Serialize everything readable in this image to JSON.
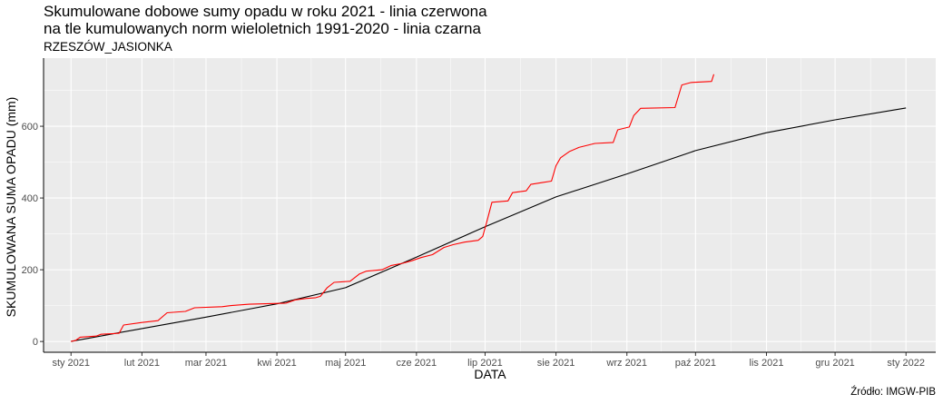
{
  "header": {
    "title_line1": "Skumulowane dobowe sumy opadu w roku 2021 - linia czerwona",
    "title_line2": "na tle kumulowanych norm wieloletnich 1991-2020 - linia czarna",
    "station": "RZESZÓW_JASIONKA"
  },
  "footer": {
    "source": "Źródło: IMGW-PIB"
  },
  "colors": {
    "actual": "#ff0000",
    "norm": "#000000",
    "panel": "#ebebeb",
    "grid": "#ffffff"
  },
  "chart_data": {
    "type": "line",
    "xlabel": "DATA",
    "ylabel": "SKUMULOWANA SUMA OPADU (mm)",
    "xlim": [
      "2020-12-20",
      "2022-01-14"
    ],
    "ylim": [
      -30,
      790
    ],
    "x_ticks": [
      {
        "date": "2021-01-01",
        "label": "sty 2021"
      },
      {
        "date": "2021-02-01",
        "label": "lut 2021"
      },
      {
        "date": "2021-03-01",
        "label": "mar 2021"
      },
      {
        "date": "2021-04-01",
        "label": "kwi 2021"
      },
      {
        "date": "2021-05-01",
        "label": "maj 2021"
      },
      {
        "date": "2021-06-01",
        "label": "cze 2021"
      },
      {
        "date": "2021-07-01",
        "label": "lip 2021"
      },
      {
        "date": "2021-08-01",
        "label": "sie 2021"
      },
      {
        "date": "2021-09-01",
        "label": "wrz 2021"
      },
      {
        "date": "2021-10-01",
        "label": "paź 2021"
      },
      {
        "date": "2021-11-01",
        "label": "lis 2021"
      },
      {
        "date": "2021-12-01",
        "label": "gru 2021"
      },
      {
        "date": "2022-01-01",
        "label": "sty 2022"
      }
    ],
    "y_ticks": [
      0,
      200,
      400,
      600
    ],
    "grid": true,
    "series": [
      {
        "color": "#000000",
        "points": [
          {
            "x": "2021-01-01",
            "y": 0
          },
          {
            "x": "2021-02-01",
            "y": 36
          },
          {
            "x": "2021-03-01",
            "y": 68
          },
          {
            "x": "2021-04-01",
            "y": 105
          },
          {
            "x": "2021-05-01",
            "y": 150
          },
          {
            "x": "2021-06-01",
            "y": 235
          },
          {
            "x": "2021-07-01",
            "y": 320
          },
          {
            "x": "2021-08-01",
            "y": 403
          },
          {
            "x": "2021-09-01",
            "y": 467
          },
          {
            "x": "2021-10-01",
            "y": 532
          },
          {
            "x": "2021-11-01",
            "y": 582
          },
          {
            "x": "2021-12-01",
            "y": 618
          },
          {
            "x": "2022-01-01",
            "y": 651
          }
        ]
      },
      {
        "color": "#ff0000",
        "points": [
          {
            "x": "2021-01-01",
            "y": 0
          },
          {
            "x": "2021-01-03",
            "y": 3
          },
          {
            "x": "2021-01-05",
            "y": 12
          },
          {
            "x": "2021-01-12",
            "y": 15
          },
          {
            "x": "2021-01-14",
            "y": 20
          },
          {
            "x": "2021-01-22",
            "y": 23
          },
          {
            "x": "2021-01-24",
            "y": 46
          },
          {
            "x": "2021-02-01",
            "y": 53
          },
          {
            "x": "2021-02-08",
            "y": 58
          },
          {
            "x": "2021-02-12",
            "y": 80
          },
          {
            "x": "2021-02-20",
            "y": 84
          },
          {
            "x": "2021-02-24",
            "y": 94
          },
          {
            "x": "2021-03-08",
            "y": 97
          },
          {
            "x": "2021-03-12",
            "y": 100
          },
          {
            "x": "2021-03-20",
            "y": 104
          },
          {
            "x": "2021-04-05",
            "y": 107
          },
          {
            "x": "2021-04-09",
            "y": 116
          },
          {
            "x": "2021-04-14",
            "y": 120
          },
          {
            "x": "2021-04-18",
            "y": 122
          },
          {
            "x": "2021-04-20",
            "y": 126
          },
          {
            "x": "2021-04-23",
            "y": 150
          },
          {
            "x": "2021-04-26",
            "y": 165
          },
          {
            "x": "2021-05-03",
            "y": 168
          },
          {
            "x": "2021-05-07",
            "y": 188
          },
          {
            "x": "2021-05-10",
            "y": 196
          },
          {
            "x": "2021-05-17",
            "y": 200
          },
          {
            "x": "2021-05-21",
            "y": 212
          },
          {
            "x": "2021-05-26",
            "y": 218
          },
          {
            "x": "2021-05-30",
            "y": 225
          },
          {
            "x": "2021-06-03",
            "y": 234
          },
          {
            "x": "2021-06-08",
            "y": 242
          },
          {
            "x": "2021-06-13",
            "y": 262
          },
          {
            "x": "2021-06-17",
            "y": 270
          },
          {
            "x": "2021-06-22",
            "y": 277
          },
          {
            "x": "2021-06-28",
            "y": 282
          },
          {
            "x": "2021-06-30",
            "y": 293
          },
          {
            "x": "2021-07-02",
            "y": 340
          },
          {
            "x": "2021-07-04",
            "y": 388
          },
          {
            "x": "2021-07-11",
            "y": 392
          },
          {
            "x": "2021-07-13",
            "y": 415
          },
          {
            "x": "2021-07-19",
            "y": 420
          },
          {
            "x": "2021-07-21",
            "y": 438
          },
          {
            "x": "2021-07-26",
            "y": 443
          },
          {
            "x": "2021-07-30",
            "y": 447
          },
          {
            "x": "2021-08-01",
            "y": 490
          },
          {
            "x": "2021-08-03",
            "y": 512
          },
          {
            "x": "2021-08-07",
            "y": 530
          },
          {
            "x": "2021-08-11",
            "y": 541
          },
          {
            "x": "2021-08-18",
            "y": 552
          },
          {
            "x": "2021-08-26",
            "y": 555
          },
          {
            "x": "2021-08-28",
            "y": 590
          },
          {
            "x": "2021-09-02",
            "y": 598
          },
          {
            "x": "2021-09-04",
            "y": 630
          },
          {
            "x": "2021-09-07",
            "y": 650
          },
          {
            "x": "2021-09-22",
            "y": 652
          },
          {
            "x": "2021-09-25",
            "y": 715
          },
          {
            "x": "2021-09-29",
            "y": 722
          },
          {
            "x": "2021-10-08",
            "y": 725
          },
          {
            "x": "2021-10-09",
            "y": 745
          }
        ]
      }
    ]
  }
}
